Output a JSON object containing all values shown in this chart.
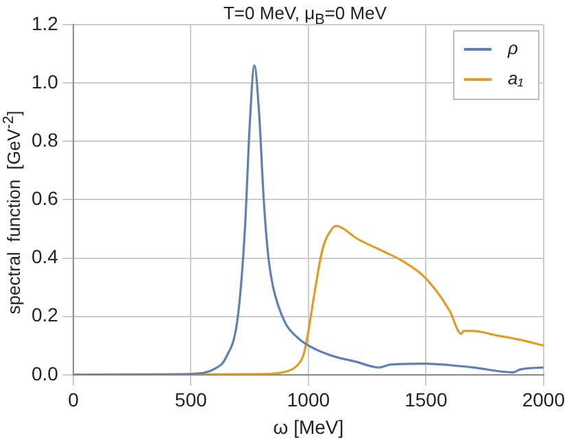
{
  "chart_data": {
    "type": "line",
    "title": "T=0 MeV, μ$_{B}$=0 MeV",
    "xlabel": "ω [MeV]",
    "ylabel": "spectral  function  [GeV$^{-2}$]",
    "series": [
      {
        "name": "ρ",
        "color": "#5e81b5",
        "x": [
          0,
          300,
          500,
          600,
          650,
          700,
          730,
          750,
          770,
          790,
          810,
          830,
          850,
          900,
          950,
          1000,
          1100,
          1200,
          1300,
          1350,
          1500,
          1600,
          1700,
          1870,
          1900,
          2000
        ],
        "values": [
          0,
          0.001,
          0.003,
          0.02,
          0.06,
          0.2,
          0.5,
          0.85,
          1.06,
          0.9,
          0.6,
          0.4,
          0.3,
          0.18,
          0.13,
          0.1,
          0.065,
          0.045,
          0.025,
          0.035,
          0.038,
          0.033,
          0.025,
          0.008,
          0.018,
          0.025
        ]
      },
      {
        "name": "a₁",
        "color": "#e19c24",
        "x": [
          0,
          500,
          800,
          900,
          950,
          980,
          1000,
          1030,
          1060,
          1100,
          1120,
          1150,
          1200,
          1300,
          1400,
          1500,
          1600,
          1650,
          1660,
          1700,
          1800,
          1900,
          2000
        ],
        "values": [
          0,
          0.001,
          0.002,
          0.01,
          0.03,
          0.07,
          0.15,
          0.3,
          0.43,
          0.5,
          0.51,
          0.5,
          0.47,
          0.43,
          0.39,
          0.33,
          0.22,
          0.14,
          0.15,
          0.15,
          0.135,
          0.12,
          0.1
        ]
      }
    ],
    "xlim": [
      0,
      2000
    ],
    "xticks": [
      0,
      500,
      1000,
      1500,
      2000
    ],
    "ylim": [
      0,
      1.2
    ],
    "yticks": [
      {
        "value": 0,
        "label": "0.0"
      },
      0.2,
      0.4,
      0.6,
      0.8,
      {
        "value": 1,
        "label": "1.0"
      },
      1.2
    ],
    "grid": true,
    "legend": "top right",
    "marker": "none",
    "line_style": "solid"
  }
}
